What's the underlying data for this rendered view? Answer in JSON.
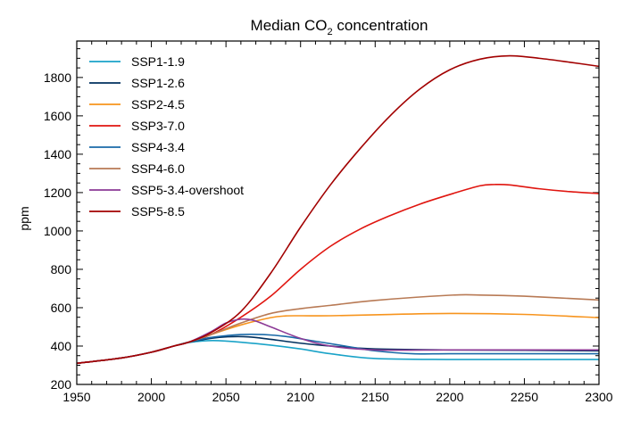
{
  "chart_data": {
    "type": "line",
    "title": "Median CO",
    "title_subscript": "2",
    "title_suffix": " concentration",
    "xlabel": "",
    "ylabel": "ppm",
    "xlim": [
      1950,
      2300
    ],
    "ylim": [
      200,
      1990
    ],
    "x_ticks": [
      1950,
      2000,
      2050,
      2100,
      2150,
      2200,
      2250,
      2300
    ],
    "y_ticks": [
      200,
      400,
      600,
      800,
      1000,
      1200,
      1400,
      1600,
      1800
    ],
    "grid": false,
    "legend_position": "top-left",
    "series": [
      {
        "name": "SSP1-1.9",
        "color": "#1aa3c8",
        "x": [
          1950,
          1980,
          2000,
          2015,
          2025,
          2035,
          2045,
          2060,
          2080,
          2100,
          2120,
          2150,
          2200,
          2250,
          2300
        ],
        "y": [
          310,
          338,
          368,
          400,
          418,
          427,
          428,
          420,
          405,
          385,
          360,
          335,
          330,
          330,
          330
        ]
      },
      {
        "name": "SSP1-2.6",
        "color": "#00305e",
        "x": [
          1950,
          1980,
          2000,
          2015,
          2025,
          2040,
          2050,
          2065,
          2080,
          2100,
          2120,
          2150,
          2200,
          2250,
          2300
        ],
        "y": [
          310,
          338,
          368,
          400,
          420,
          440,
          448,
          448,
          435,
          415,
          400,
          385,
          380,
          378,
          375
        ]
      },
      {
        "name": "SSP2-4.5",
        "color": "#f7941d",
        "x": [
          1950,
          1980,
          2000,
          2015,
          2025,
          2040,
          2060,
          2080,
          2090,
          2100,
          2120,
          2150,
          2200,
          2250,
          2300
        ],
        "y": [
          310,
          338,
          368,
          400,
          420,
          460,
          510,
          548,
          557,
          558,
          558,
          563,
          570,
          565,
          548
        ]
      },
      {
        "name": "SSP3-7.0",
        "color": "#e0150f",
        "x": [
          1950,
          1980,
          2000,
          2015,
          2025,
          2040,
          2060,
          2080,
          2100,
          2120,
          2140,
          2160,
          2180,
          2200,
          2220,
          2230,
          2240,
          2260,
          2280,
          2300
        ],
        "y": [
          310,
          338,
          368,
          400,
          420,
          460,
          550,
          660,
          800,
          920,
          1010,
          1080,
          1140,
          1190,
          1235,
          1242,
          1240,
          1220,
          1205,
          1195
        ]
      },
      {
        "name": "SSP4-3.4",
        "color": "#1a6aa8",
        "x": [
          1950,
          1980,
          2000,
          2015,
          2025,
          2040,
          2060,
          2075,
          2090,
          2110,
          2130,
          2150,
          2175,
          2200,
          2250,
          2300
        ],
        "y": [
          310,
          338,
          368,
          400,
          420,
          445,
          460,
          460,
          450,
          425,
          400,
          375,
          360,
          360,
          360,
          360
        ]
      },
      {
        "name": "SSP4-6.0",
        "color": "#b87a55",
        "x": [
          1950,
          1980,
          2000,
          2015,
          2025,
          2040,
          2060,
          2080,
          2100,
          2120,
          2150,
          2200,
          2220,
          2250,
          2300
        ],
        "y": [
          310,
          338,
          368,
          400,
          420,
          460,
          520,
          570,
          595,
          612,
          638,
          665,
          666,
          660,
          640
        ]
      },
      {
        "name": "SSP5-3.4-overshoot",
        "color": "#8c3a96",
        "x": [
          1950,
          1980,
          2000,
          2015,
          2025,
          2040,
          2050,
          2060,
          2068,
          2080,
          2100,
          2120,
          2150,
          2200,
          2250,
          2300
        ],
        "y": [
          310,
          338,
          368,
          400,
          420,
          475,
          520,
          540,
          535,
          500,
          440,
          400,
          380,
          380,
          380,
          380
        ]
      },
      {
        "name": "SSP5-8.5",
        "color": "#a20000",
        "x": [
          1950,
          1980,
          2000,
          2015,
          2025,
          2040,
          2060,
          2080,
          2100,
          2120,
          2140,
          2160,
          2180,
          2200,
          2220,
          2240,
          2260,
          2280,
          2300
        ],
        "y": [
          310,
          338,
          368,
          400,
          420,
          470,
          580,
          780,
          1020,
          1240,
          1430,
          1600,
          1740,
          1840,
          1895,
          1913,
          1900,
          1880,
          1858
        ]
      }
    ]
  }
}
